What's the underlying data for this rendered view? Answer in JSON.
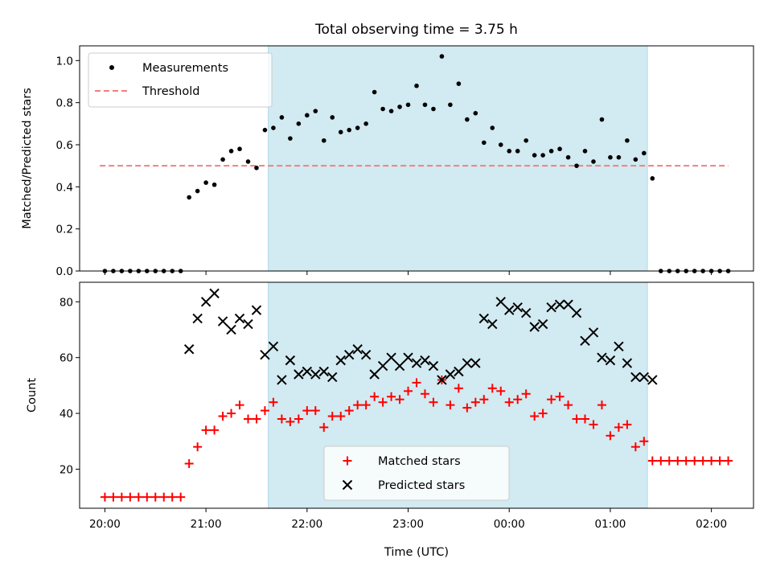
{
  "colors": {
    "shade": "#add8e6",
    "measurement": "#000000",
    "threshold": "#f08080",
    "matched": "#ff0000",
    "predicted": "#000000"
  },
  "chart_data": [
    {
      "type": "scatter",
      "title": "Total observing time = 3.75 h",
      "xlabel": "",
      "ylabel": "Matched/Predicted stars",
      "xlim": [
        "19:45",
        "02:25"
      ],
      "ylim": [
        0,
        1.07
      ],
      "yticks": [
        "0.0",
        "0.2",
        "0.4",
        "0.6",
        "0.8",
        "1.0"
      ],
      "shaded_region": {
        "from": "21:37",
        "to": "01:22"
      },
      "legend": {
        "placement": "top-left",
        "entries": [
          "Measurements",
          "Threshold"
        ]
      },
      "threshold": {
        "name": "Threshold",
        "y": 0.5,
        "x_from": "19:57",
        "x_to": "02:10"
      },
      "series": [
        {
          "name": "Measurements",
          "x": [
            "20:00",
            "20:05",
            "20:10",
            "20:15",
            "20:20",
            "20:25",
            "20:30",
            "20:35",
            "20:40",
            "20:45",
            "20:50",
            "20:55",
            "21:00",
            "21:05",
            "21:10",
            "21:15",
            "21:20",
            "21:25",
            "21:30",
            "21:35",
            "21:40",
            "21:45",
            "21:50",
            "21:55",
            "22:00",
            "22:05",
            "22:10",
            "22:15",
            "22:20",
            "22:25",
            "22:30",
            "22:35",
            "22:40",
            "22:45",
            "22:50",
            "22:55",
            "23:00",
            "23:05",
            "23:10",
            "23:15",
            "23:20",
            "23:25",
            "23:30",
            "23:35",
            "23:40",
            "23:45",
            "23:50",
            "23:55",
            "00:00",
            "00:05",
            "00:10",
            "00:15",
            "00:20",
            "00:25",
            "00:30",
            "00:35",
            "00:40",
            "00:45",
            "00:50",
            "00:55",
            "01:00",
            "01:05",
            "01:10",
            "01:15",
            "01:20",
            "01:25",
            "01:30",
            "01:35",
            "01:40",
            "01:45",
            "01:50",
            "01:55",
            "02:00",
            "02:05",
            "02:10"
          ],
          "y": [
            0,
            0,
            0,
            0,
            0,
            0,
            0,
            0,
            0,
            0,
            0.35,
            0.38,
            0.42,
            0.41,
            0.53,
            0.57,
            0.58,
            0.52,
            0.49,
            0.67,
            0.68,
            0.73,
            0.63,
            0.7,
            0.74,
            0.76,
            0.62,
            0.73,
            0.66,
            0.67,
            0.68,
            0.7,
            0.85,
            0.77,
            0.76,
            0.78,
            0.79,
            0.88,
            0.79,
            0.77,
            1.02,
            0.79,
            0.89,
            0.72,
            0.75,
            0.61,
            0.68,
            0.6,
            0.57,
            0.57,
            0.62,
            0.55,
            0.55,
            0.57,
            0.58,
            0.54,
            0.5,
            0.57,
            0.52,
            0.72,
            0.54,
            0.54,
            0.62,
            0.53,
            0.56,
            0.44,
            0,
            0,
            0,
            0,
            0,
            0,
            0,
            0,
            0
          ]
        }
      ]
    },
    {
      "type": "scatter",
      "title": "",
      "xlabel": "Time (UTC)",
      "ylabel": "Count",
      "xlim": [
        "19:45",
        "02:25"
      ],
      "ylim": [
        6,
        87
      ],
      "xticks": [
        "20:00",
        "21:00",
        "22:00",
        "23:00",
        "00:00",
        "01:00",
        "02:00"
      ],
      "yticks": [
        "20",
        "40",
        "60",
        "80"
      ],
      "shaded_region": {
        "from": "21:37",
        "to": "01:22"
      },
      "legend": {
        "placement": "lower-center",
        "entries": [
          "Matched stars",
          "Predicted stars"
        ]
      },
      "series": [
        {
          "name": "Matched stars",
          "x": [
            "20:00",
            "20:05",
            "20:10",
            "20:15",
            "20:20",
            "20:25",
            "20:30",
            "20:35",
            "20:40",
            "20:45",
            "20:50",
            "20:55",
            "21:00",
            "21:05",
            "21:10",
            "21:15",
            "21:20",
            "21:25",
            "21:30",
            "21:35",
            "21:40",
            "21:45",
            "21:50",
            "21:55",
            "22:00",
            "22:05",
            "22:10",
            "22:15",
            "22:20",
            "22:25",
            "22:30",
            "22:35",
            "22:40",
            "22:45",
            "22:50",
            "22:55",
            "23:00",
            "23:05",
            "23:10",
            "23:15",
            "23:20",
            "23:25",
            "23:30",
            "23:35",
            "23:40",
            "23:45",
            "23:50",
            "23:55",
            "00:00",
            "00:05",
            "00:10",
            "00:15",
            "00:20",
            "00:25",
            "00:30",
            "00:35",
            "00:40",
            "00:45",
            "00:50",
            "00:55",
            "01:00",
            "01:05",
            "01:10",
            "01:15",
            "01:20",
            "01:25",
            "01:30",
            "01:35",
            "01:40",
            "01:45",
            "01:50",
            "01:55",
            "02:00",
            "02:05",
            "02:10"
          ],
          "y": [
            10,
            10,
            10,
            10,
            10,
            10,
            10,
            10,
            10,
            10,
            22,
            28,
            34,
            34,
            39,
            40,
            43,
            38,
            38,
            41,
            44,
            38,
            37,
            38,
            41,
            41,
            35,
            39,
            39,
            41,
            43,
            43,
            46,
            44,
            46,
            45,
            48,
            51,
            47,
            44,
            52,
            43,
            49,
            42,
            44,
            45,
            49,
            48,
            44,
            45,
            47,
            39,
            40,
            45,
            46,
            43,
            38,
            38,
            36,
            43,
            32,
            35,
            36,
            28,
            30,
            23,
            23,
            23,
            23,
            23,
            23,
            23,
            23,
            23,
            23
          ]
        },
        {
          "name": "Predicted stars",
          "x": [
            "20:50",
            "20:55",
            "21:00",
            "21:05",
            "21:10",
            "21:15",
            "21:20",
            "21:25",
            "21:30",
            "21:35",
            "21:40",
            "21:45",
            "21:50",
            "21:55",
            "22:00",
            "22:05",
            "22:10",
            "22:15",
            "22:20",
            "22:25",
            "22:30",
            "22:35",
            "22:40",
            "22:45",
            "22:50",
            "22:55",
            "23:00",
            "23:05",
            "23:10",
            "23:15",
            "23:20",
            "23:25",
            "23:30",
            "23:35",
            "23:40",
            "23:45",
            "23:50",
            "23:55",
            "00:00",
            "00:05",
            "00:10",
            "00:15",
            "00:20",
            "00:25",
            "00:30",
            "00:35",
            "00:40",
            "00:45",
            "00:50",
            "00:55",
            "01:00",
            "01:05",
            "01:10",
            "01:15",
            "01:20",
            "01:25"
          ],
          "y": [
            63,
            74,
            80,
            83,
            73,
            70,
            74,
            72,
            77,
            61,
            64,
            52,
            59,
            54,
            55,
            54,
            55,
            53,
            59,
            61,
            63,
            61,
            54,
            57,
            60,
            57,
            60,
            58,
            59,
            57,
            52,
            54,
            55,
            58,
            58,
            74,
            72,
            80,
            77,
            78,
            76,
            71,
            72,
            78,
            79,
            79,
            76,
            66,
            69,
            60,
            59,
            64,
            58,
            53,
            53,
            52
          ]
        }
      ]
    }
  ]
}
